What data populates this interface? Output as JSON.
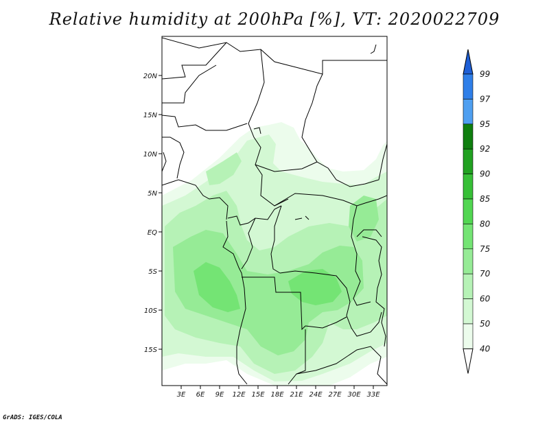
{
  "title": "Relative humidity at 200hPa [%], VT: 2020022709",
  "credit": "GrADS: IGES/COLA",
  "lat_labels": [
    "20N",
    "15N",
    "10N",
    "5N",
    "EQ",
    "5S",
    "10S",
    "15S"
  ],
  "lon_labels": [
    "3E",
    "6E",
    "9E",
    "12E",
    "15E",
    "18E",
    "21E",
    "24E",
    "27E",
    "30E",
    "33E"
  ],
  "colorbar": {
    "labels": [
      "99",
      "97",
      "95",
      "92",
      "90",
      "85",
      "80",
      "75",
      "70",
      "60",
      "50",
      "40"
    ],
    "colors": [
      "#1e5fd6",
      "#2f7fe8",
      "#4f9ff0",
      "#0f7f0f",
      "#21a121",
      "#37bf37",
      "#52d652",
      "#74e474",
      "#96eb96",
      "#b6f2b6",
      "#d3f8d3",
      "#ecfcec"
    ]
  }
}
